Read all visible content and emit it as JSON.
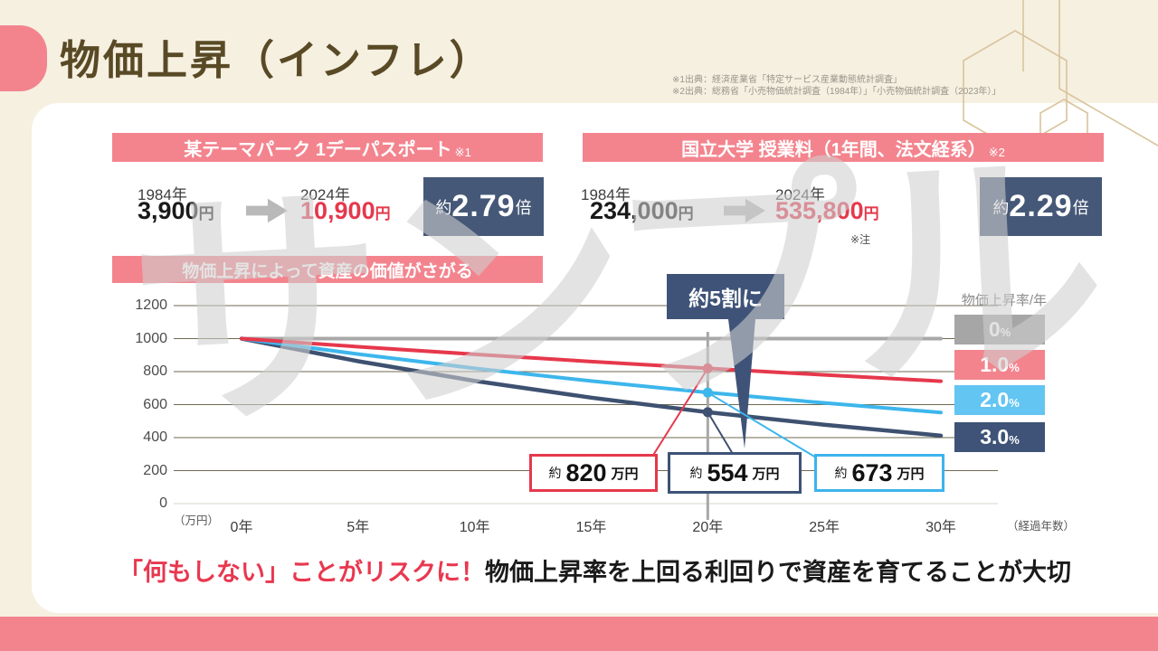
{
  "header": {
    "title": "物価上昇（インフレ）",
    "sources": [
      "※1出典：経済産業省「特定サービス産業動態統計調査」",
      "※2出典：総務省「小売物価統計調査（1984年）」「小売物価統計調査（2023年）」"
    ]
  },
  "watermark": "サンプル",
  "comparisons": [
    {
      "header": "某テーマパーク 1デーパスポート",
      "header_note": "※1",
      "before_year": "1984年",
      "before_value": "3,900",
      "after_year": "2024年",
      "after_value": "10,900",
      "unit": "円",
      "mult_prefix": "約",
      "mult_value": "2.79",
      "mult_suffix": "倍"
    },
    {
      "header": "国立大学 授業料（1年間、法文経系）",
      "header_note": "※2",
      "before_year": "1984年",
      "before_value": "234,000",
      "after_year": "2024年",
      "after_value": "535,800",
      "unit": "円",
      "mult_prefix": "約",
      "mult_value": "2.29",
      "mult_suffix": "倍",
      "note": "※注"
    }
  ],
  "chart_header": "物価上昇によって資産の価値がさがる",
  "chart_data": {
    "type": "line",
    "title": "物価上昇によって資産の価値がさがる",
    "x": [
      0,
      5,
      10,
      15,
      20,
      25,
      30
    ],
    "x_tick_labels": [
      "0年",
      "5年",
      "10年",
      "15年",
      "20年",
      "25年",
      "30年"
    ],
    "xlabel": "（経過年数）",
    "ylabel": "（万円）",
    "ylim": [
      0,
      1200
    ],
    "yticks": [
      0,
      200,
      400,
      600,
      800,
      1000,
      1200
    ],
    "grid": true,
    "legend_title": "物価上昇率/年",
    "legend_position": "right",
    "series": [
      {
        "name": "0%",
        "num": "0",
        "pct": "%",
        "color": "#a8a8a8",
        "chip_color": "#a6a6a6",
        "values": [
          1000,
          1000,
          1000,
          1000,
          1000,
          1000,
          1000
        ]
      },
      {
        "name": "1.0%",
        "num": "1.0",
        "pct": "%",
        "color": "#e6384c",
        "chip_color": "#f3848e",
        "values": [
          1000,
          951,
          905,
          861,
          820,
          780,
          742
        ]
      },
      {
        "name": "2.0%",
        "num": "2.0",
        "pct": "%",
        "color": "#3db6ec",
        "chip_color": "#63c5f2",
        "values": [
          1000,
          906,
          820,
          743,
          673,
          610,
          552
        ]
      },
      {
        "name": "3.0%",
        "num": "3.0",
        "pct": "%",
        "color": "#3e5170",
        "chip_color": "#3e5377",
        "values": [
          1000,
          863,
          744,
          642,
          554,
          478,
          412
        ]
      }
    ],
    "marker_x": 20,
    "annotations": {
      "callout": "約5割に",
      "point_labels": [
        {
          "prefix": "約",
          "value": "820",
          "suffix": "万円",
          "series": "1.0%",
          "color": "#e6384c"
        },
        {
          "prefix": "約",
          "value": "554",
          "suffix": "万円",
          "series": "3.0%",
          "color": "#3e5377"
        },
        {
          "prefix": "約",
          "value": "673",
          "suffix": "万円",
          "series": "2.0%",
          "color": "#3cb4ec"
        }
      ]
    }
  },
  "footer": {
    "highlight": "「何もしない」ことがリスクに！",
    "rest": "物価上昇率を上回る利回りで資産を育てることが大切"
  },
  "colors": {
    "accent_pink": "#f3848e",
    "navy": "#3e5377",
    "cream": "#f6f0e1",
    "red": "#e6384c",
    "light_blue": "#3db6ec",
    "gray": "#a6a6a6"
  }
}
